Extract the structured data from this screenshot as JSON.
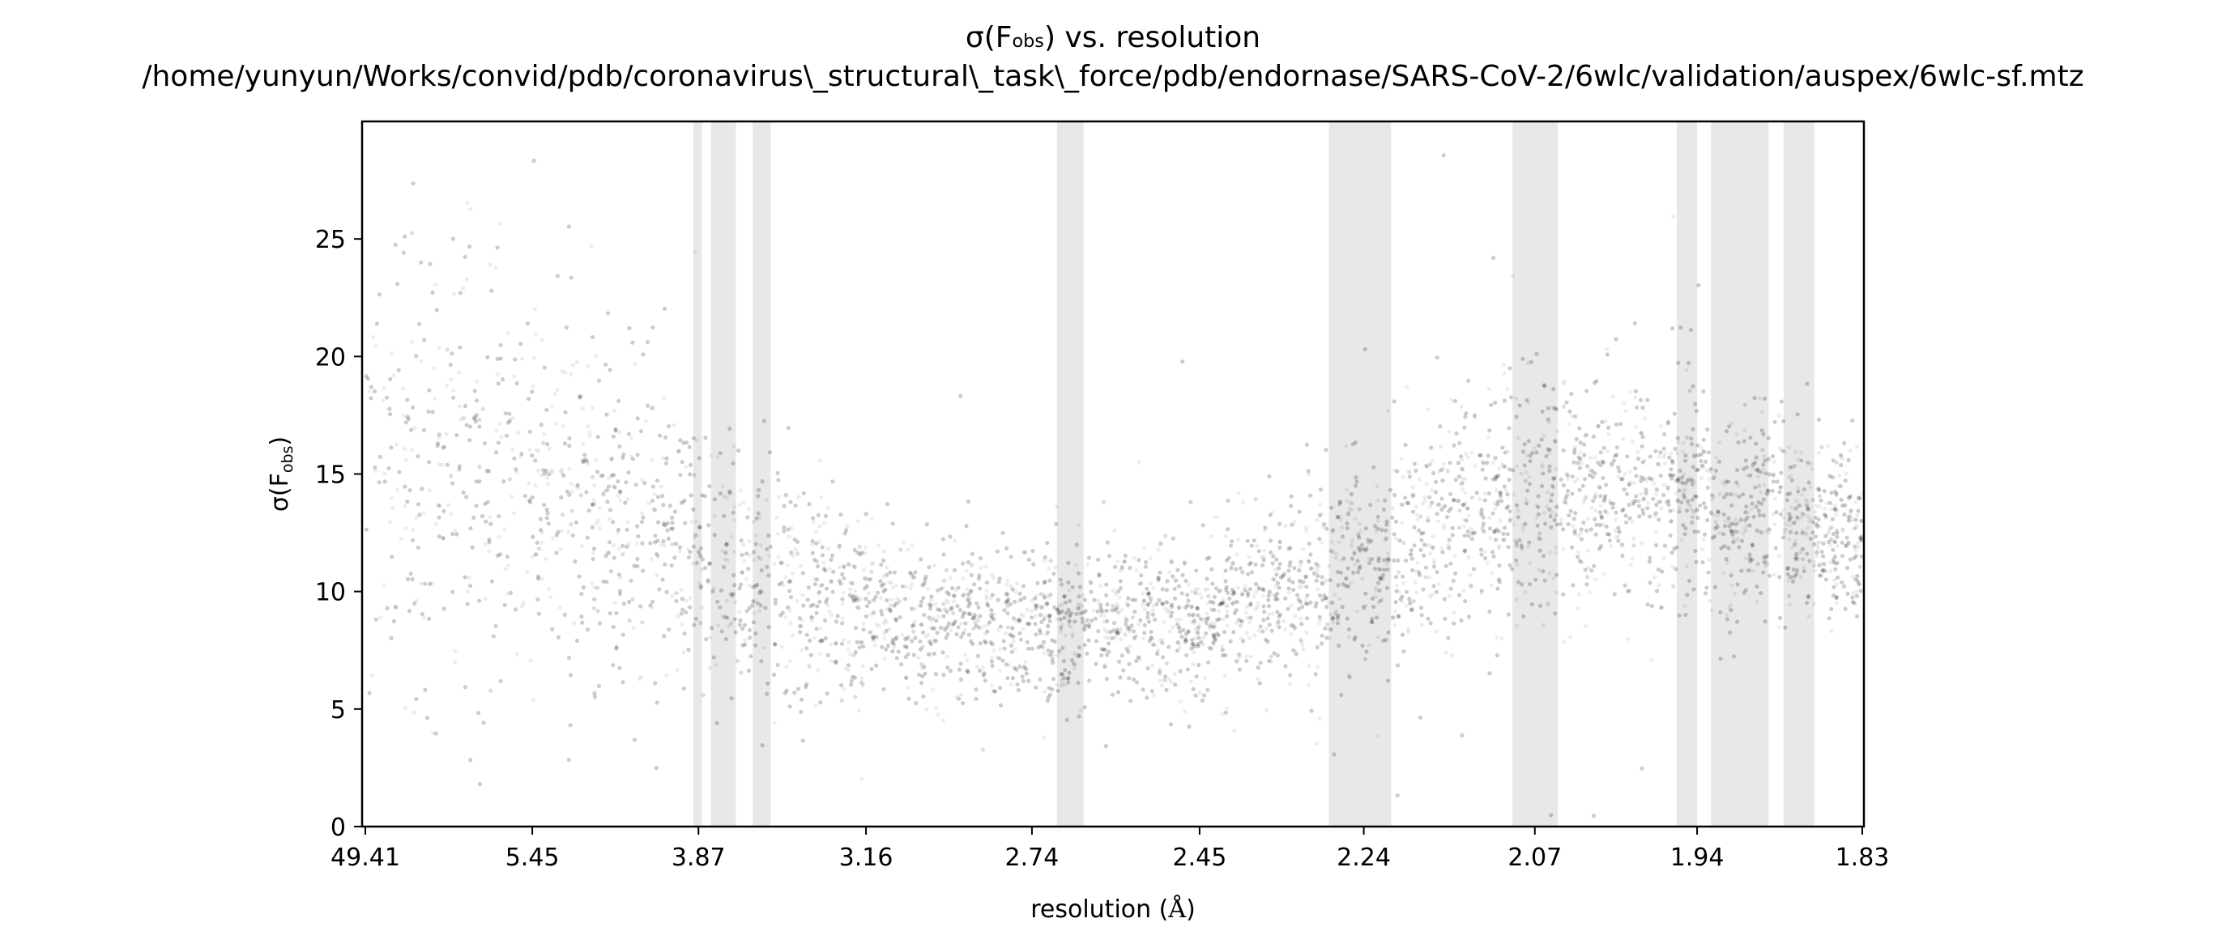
{
  "chart_data": {
    "type": "scatter",
    "title_line1_prefix": "σ(F",
    "title_line1_sub": "obs",
    "title_line1_suffix": ") vs. resolution",
    "title_line2": "/home/yunyun/Works/convid/pdb/coronavirus\\_structural\\_task\\_force/pdb/endornase/SARS-CoV-2/6wlc/validation/auspex/6wlc-sf.mtz",
    "xlabel_prefix": "resolution (",
    "xlabel_unit": "Å",
    "xlabel_suffix": ")",
    "ylabel_prefix": "σ(F",
    "ylabel_sub": "obs",
    "ylabel_suffix": ")",
    "x_scale": "1/resolution²",
    "x_ticks": [
      "49.41",
      "5.45",
      "3.87",
      "3.16",
      "2.74",
      "2.45",
      "2.24",
      "2.07",
      "1.94",
      "1.83"
    ],
    "ylim": [
      0,
      30
    ],
    "y_ticks": [
      "0",
      "5",
      "10",
      "15",
      "20",
      "25"
    ],
    "ice_ring_bands_resolution": [
      [
        3.9,
        3.85
      ],
      [
        3.8,
        3.67
      ],
      [
        3.59,
        3.51
      ],
      [
        2.69,
        2.64
      ],
      [
        2.28,
        2.21
      ],
      [
        2.09,
        2.05
      ],
      [
        1.955,
        1.94
      ],
      [
        1.93,
        1.89
      ],
      [
        1.88,
        1.86
      ]
    ],
    "density_profile": [
      {
        "resolution": 7.5,
        "center": 15.5,
        "spread": 5.0
      },
      {
        "resolution": 5.45,
        "center": 14.0,
        "spread": 4.0
      },
      {
        "resolution": 4.2,
        "center": 13.0,
        "spread": 3.5
      },
      {
        "resolution": 3.87,
        "center": 12.0,
        "spread": 3.0
      },
      {
        "resolution": 3.5,
        "center": 10.5,
        "spread": 2.5
      },
      {
        "resolution": 3.16,
        "center": 9.0,
        "spread": 1.8
      },
      {
        "resolution": 2.74,
        "center": 8.5,
        "spread": 1.5
      },
      {
        "resolution": 2.45,
        "center": 8.8,
        "spread": 1.6
      },
      {
        "resolution": 2.24,
        "center": 11.0,
        "spread": 2.2
      },
      {
        "resolution": 2.07,
        "center": 14.5,
        "spread": 2.5
      },
      {
        "resolution": 1.94,
        "center": 14.0,
        "spread": 2.2
      },
      {
        "resolution": 1.83,
        "center": 12.0,
        "spread": 1.7
      }
    ],
    "grid": false,
    "legend": "none",
    "colors": {
      "points": "#000000",
      "bands": "#e8e8e8",
      "axes": "#000000"
    }
  }
}
